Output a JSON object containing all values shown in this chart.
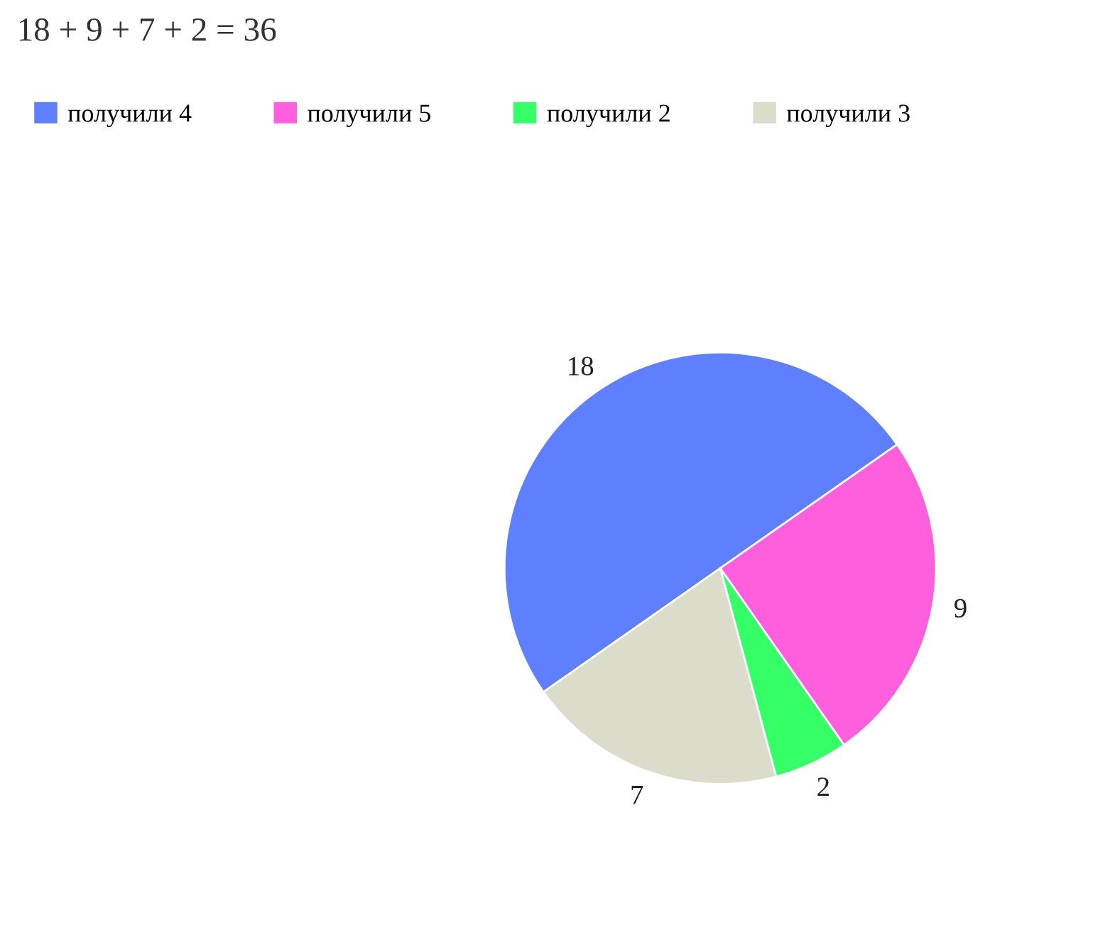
{
  "chart_data": {
    "type": "pie",
    "title": "18 + 9 + 7 + 2 = 36",
    "categories": [
      "получили 4",
      "получили 5",
      "получили 2",
      "получили 3"
    ],
    "values": [
      18,
      9,
      2,
      7
    ],
    "colors": [
      "#5f80fe",
      "#ff5fdd",
      "#35ff66",
      "#dcdccb"
    ],
    "data_labels": true,
    "legend": "top"
  }
}
